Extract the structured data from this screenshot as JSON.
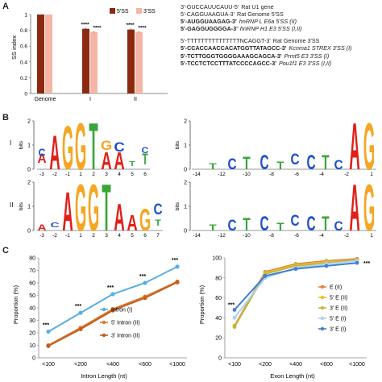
{
  "panels": {
    "a": "A",
    "b": "B",
    "c": "C"
  },
  "colors": {
    "five_ss": "#8b2a10",
    "three_ss": "#f4b5a5",
    "intron_I": "#5aaee0",
    "intron_II": "#e07a30",
    "intron_II_3": "#c06020",
    "E_II": "#e08040",
    "fiveE_II": "#f0c020",
    "threeE_II": "#c0b840",
    "fiveE_I": "#aad4f0",
    "threeE_I": "#4080d0"
  },
  "chart_data": [
    {
      "type": "bar",
      "ylabel": "SS index",
      "ylim": [
        0,
        1
      ],
      "yticks": [
        "0",
        "0.2",
        "0.4",
        "0.6",
        "0.8",
        "1"
      ],
      "categories": [
        "Genome",
        "I",
        "II"
      ],
      "series": [
        {
          "name": "5'SS",
          "values": [
            1.0,
            0.82,
            0.81
          ],
          "errors": [
            0,
            0.01,
            0.015
          ]
        },
        {
          "name": "3'SS",
          "values": [
            1.0,
            0.78,
            0.78
          ],
          "errors": [
            0,
            0.01,
            0.01
          ]
        }
      ],
      "annotations": [
        "****",
        "****",
        "****",
        "****"
      ]
    },
    {
      "type": "line",
      "ylabel": "Proportion (%)",
      "xlabel": "Intron Length (nt)",
      "ylim": [
        0,
        80
      ],
      "yticks": [
        "0",
        "10",
        "20",
        "30",
        "40",
        "50",
        "60",
        "70",
        "80"
      ],
      "categories": [
        "<100",
        "<200",
        "<400",
        "<600",
        "<1000"
      ],
      "series": [
        {
          "name": "Intron (I)",
          "values": [
            21,
            36,
            51,
            60,
            73
          ]
        },
        {
          "name": "5' Intron (II)",
          "values": [
            10,
            24,
            39,
            49,
            61
          ]
        },
        {
          "name": "3' Intron (II)",
          "values": [
            9.5,
            23,
            38,
            48,
            60.5
          ]
        }
      ],
      "annotations": [
        "***",
        "***",
        "***",
        "***",
        "***"
      ]
    },
    {
      "type": "line",
      "ylabel": "Proportion (%)",
      "xlabel": "Exon Length (nt)",
      "ylim": [
        0,
        100
      ],
      "yticks": [
        "0",
        "20",
        "40",
        "60",
        "80",
        "100"
      ],
      "categories": [
        "<100",
        "<200",
        "<400",
        "<600",
        "<1000"
      ],
      "series": [
        {
          "name": "E (II)",
          "values": [
            32,
            86,
            94,
            97,
            99
          ]
        },
        {
          "name": "5' E (II)",
          "values": [
            31,
            85,
            93,
            96,
            98
          ]
        },
        {
          "name": "3' E (II)",
          "values": [
            31,
            84,
            92,
            95,
            98
          ]
        },
        {
          "name": "5' E (I)",
          "values": [
            40,
            80,
            90,
            94,
            97
          ]
        },
        {
          "name": "3' E (I)",
          "values": [
            48,
            82,
            89,
            92,
            95
          ]
        }
      ],
      "annotations": [
        "***",
        "***"
      ]
    }
  ],
  "sequences": [
    {
      "seq": "3'-GUCCAUUCAUU-5'",
      "label": "Rat U1 gene",
      "italic": false
    },
    {
      "seq": "5'-CAGGUAAGUA-3'",
      "label": "Rat Genome 5'SS",
      "italic": false
    },
    {
      "seq": "5'-AUGGUAAGAG-3'",
      "label": "hnRNP L E6a 5'SS (II)",
      "italic": true
    },
    {
      "seq": "5'-GAGGUGGGGA-3'",
      "label": "hnRNP H1 E3 5'SS (I,II)",
      "italic": true
    },
    {
      "seq": "5'-TTTTTTTTTTTTTTTNCAGGT-3'",
      "label": "Rat Genome 3'SS",
      "italic": false
    },
    {
      "seq": "5'-CCACCAACCACATGGTTATAGCC-3'",
      "label": "Kcnma1 STREX 3'SS (I)",
      "italic": true
    },
    {
      "seq": "5'-TCTTGGGTGGGGAAAGCAGCA-3'",
      "label": "Prmt5 E3 3'SS (I)",
      "italic": true
    },
    {
      "seq": "5'-TCCTCTCCTTTATCCCCAGCC-3'",
      "label": "Pou1f1 E3 3'SS (I,II)",
      "italic": true
    }
  ],
  "logos": {
    "row_I": "I",
    "row_II": "II",
    "ylabel": "bits",
    "yticks": [
      "0",
      "1",
      "2"
    ],
    "five_positions": [
      "-3",
      "-2",
      "-1",
      "1",
      "2",
      "3",
      "4",
      "5",
      "6"
    ],
    "five_positions_II": [
      "-3",
      "-2",
      "-1",
      "1",
      "2",
      "3",
      "4",
      "5",
      "6",
      "7"
    ],
    "three_positions": [
      "-14",
      "-12",
      "-10",
      "-8",
      "-6",
      "-4",
      "-2",
      "1"
    ],
    "five_I_letters": [
      "A",
      "C",
      "A",
      "G",
      "G",
      "T",
      "A",
      "A",
      "G",
      "C",
      "T",
      "T",
      "C"
    ],
    "five_II_letters": [
      "A",
      "A",
      "G",
      "G",
      "T",
      "A",
      "A",
      "G",
      "C",
      "T",
      "C"
    ],
    "three_letters": [
      "T",
      "C",
      "T",
      "C",
      "T",
      "C",
      "C",
      "T",
      "C",
      "A",
      "G"
    ]
  }
}
